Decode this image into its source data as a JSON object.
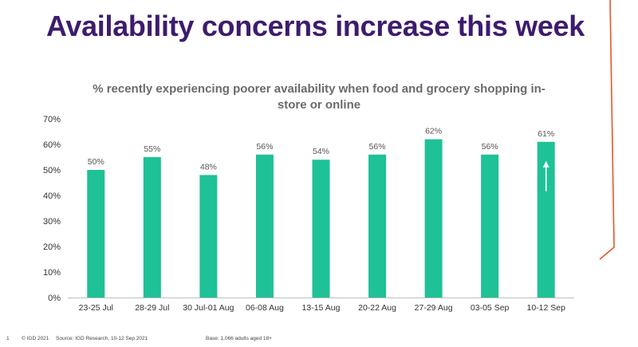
{
  "slide": {
    "title": "Availability concerns increase this week",
    "page_number": "1",
    "copyright": "© IGD 2021",
    "source": "Source: IGD Research, 10-12 Sep 2021",
    "base": "Base: 1,066 adults aged 18+",
    "accent_color": "#e8562a",
    "title_color": "#3d1c6e"
  },
  "chart_data": {
    "type": "bar",
    "title": "% recently experiencing poorer availability when food and grocery shopping in-store or online",
    "categories": [
      "23-25 Jul",
      "28-29 Jul",
      "30 Jul-01 Aug",
      "06-08 Aug",
      "13-15 Aug",
      "20-22 Aug",
      "27-29 Aug",
      "03-05 Sep",
      "10-12 Sep"
    ],
    "values": [
      50,
      55,
      48,
      56,
      54,
      56,
      62,
      56,
      61
    ],
    "data_labels": [
      "50%",
      "55%",
      "48%",
      "56%",
      "54%",
      "56%",
      "62%",
      "56%",
      "61%"
    ],
    "y_ticks": [
      "0%",
      "10%",
      "20%",
      "30%",
      "40%",
      "50%",
      "60%",
      "70%"
    ],
    "ylim": [
      0,
      70
    ],
    "grid": false,
    "bar_color": "#1fc196",
    "annotation": "up-arrow-on-last-bar"
  }
}
